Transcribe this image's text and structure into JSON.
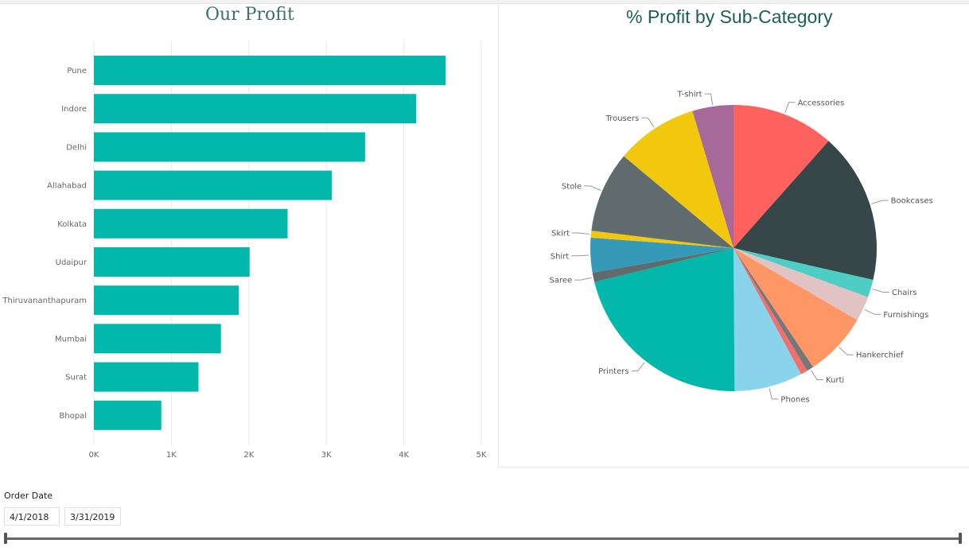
{
  "bar_chart": {
    "title": "Our Profit"
  },
  "pie_chart": {
    "title": "% Profit by Sub-Category"
  },
  "chart_data": [
    {
      "type": "bar",
      "orientation": "horizontal",
      "title": "Our Profit",
      "categories": [
        "Pune",
        "Indore",
        "Delhi",
        "Allahabad",
        "Kolkata",
        "Udaipur",
        "Thiruvananthapuram",
        "Mumbai",
        "Surat",
        "Bhopal"
      ],
      "values": [
        4540,
        4160,
        3500,
        3070,
        2500,
        2010,
        1870,
        1640,
        1350,
        870
      ],
      "xlim": [
        0,
        5000
      ],
      "xticks": [
        0,
        1000,
        2000,
        3000,
        4000,
        5000
      ],
      "xtick_labels": [
        "0K",
        "1K",
        "2K",
        "3K",
        "4K",
        "5K"
      ],
      "grid": true,
      "color": "#01b8aa"
    },
    {
      "type": "pie",
      "title": "% Profit by Sub-Category",
      "labels": [
        "Accessories",
        "Bookcases",
        "Chairs",
        "Furnishings",
        "Hankerchief",
        "Kurti",
        "",
        "Phones",
        "Printers",
        "Saree",
        "Shirt",
        "Skirt",
        "Stole",
        "Trousers",
        "T-shirt"
      ],
      "values": [
        11.85,
        17.45,
        2.05,
        2.9,
        7.4,
        0.8,
        0.8,
        7.9,
        21.85,
        1.1,
        4.0,
        0.8,
        9.4,
        9.5,
        4.75
      ],
      "colors": [
        "#fd625e",
        "#374649",
        "#4ecdc4",
        "#e2c3c3",
        "#fe9666",
        "#777777",
        "#f26f6f",
        "#8ad4eb",
        "#01b8aa",
        "#5f6b6d",
        "#3599b8",
        "#f2c80f",
        "#5f6b6d",
        "#f2c80f",
        "#a66999"
      ]
    }
  ],
  "slicer": {
    "title": "Order Date",
    "start": "4/1/2018",
    "end": "3/31/2019"
  }
}
